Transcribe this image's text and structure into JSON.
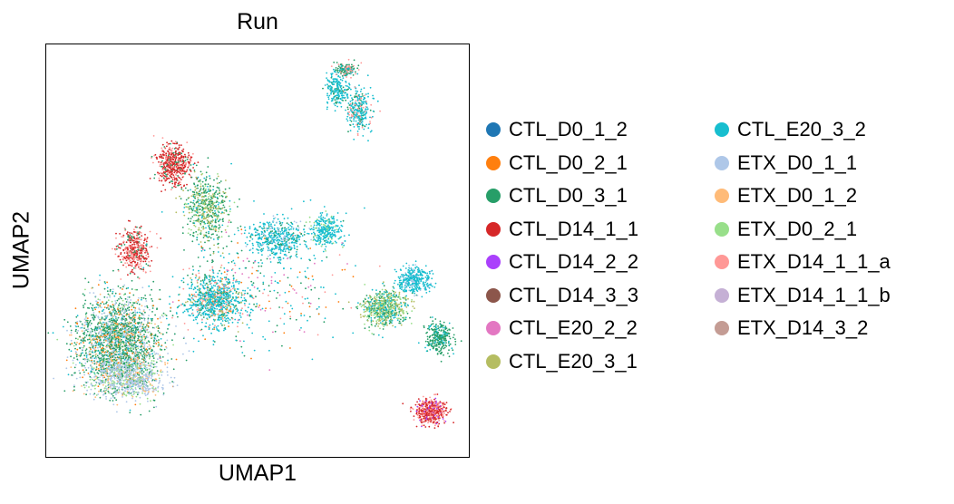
{
  "chart_data": {
    "type": "scatter",
    "title": "Run",
    "xlabel": "UMAP1",
    "ylabel": "UMAP2",
    "xticks": [],
    "yticks": [],
    "grid": false,
    "legend_placement": "right, outside plot, two columns",
    "series": [
      {
        "name": "CTL_D0_1_2",
        "color": "#1f77b4"
      },
      {
        "name": "CTL_D0_2_1",
        "color": "#ff7f0e"
      },
      {
        "name": "CTL_D0_3_1",
        "color": "#279e68"
      },
      {
        "name": "CTL_D14_1_1",
        "color": "#d62728"
      },
      {
        "name": "CTL_D14_2_2",
        "color": "#aa40fc"
      },
      {
        "name": "CTL_D14_3_3",
        "color": "#8c564b"
      },
      {
        "name": "CTL_E20_2_2",
        "color": "#e377c2"
      },
      {
        "name": "CTL_E20_3_1",
        "color": "#b5bd61"
      },
      {
        "name": "CTL_E20_3_2",
        "color": "#17becf"
      },
      {
        "name": "ETX_D0_1_1",
        "color": "#aec7e8"
      },
      {
        "name": "ETX_D0_1_2",
        "color": "#ffbb78"
      },
      {
        "name": "ETX_D0_2_1",
        "color": "#98df8a"
      },
      {
        "name": "ETX_D14_1_1_a",
        "color": "#ff9896"
      },
      {
        "name": "ETX_D14_1_1_b",
        "color": "#c5b0d5"
      },
      {
        "name": "ETX_D14_3_2",
        "color": "#c49c94"
      }
    ],
    "clusters": [
      {
        "x": 0.17,
        "y": 0.28,
        "spread": [
          0.1,
          0.11
        ],
        "weight": 32,
        "mix": {
          "CTL_D0_3_1": 6,
          "ETX_D0_1_1": 3,
          "ETX_D0_2_1": 1,
          "CTL_E20_3_2": 1,
          "ETX_D0_1_2": 1,
          "CTL_D0_2_1": 1
        }
      },
      {
        "x": 0.19,
        "y": 0.19,
        "spread": [
          0.09,
          0.05
        ],
        "weight": 10,
        "mix": {
          "ETX_D0_1_1": 6,
          "ETX_D0_2_1": 2,
          "CTL_D0_3_1": 1,
          "ETX_D0_1_2": 1
        }
      },
      {
        "x": 0.21,
        "y": 0.5,
        "spread": [
          0.035,
          0.05
        ],
        "weight": 6,
        "mix": {
          "CTL_D14_1_1": 4,
          "ETX_D14_1_1_a": 3,
          "CTL_D0_3_1": 1
        }
      },
      {
        "x": 0.3,
        "y": 0.71,
        "spread": [
          0.04,
          0.05
        ],
        "weight": 7,
        "mix": {
          "CTL_D14_1_1": 5,
          "ETX_D14_1_1_a": 2,
          "CTL_D0_3_1": 1
        }
      },
      {
        "x": 0.38,
        "y": 0.6,
        "spread": [
          0.05,
          0.08
        ],
        "weight": 8,
        "mix": {
          "CTL_D0_3_1": 4,
          "CTL_E20_3_1": 2,
          "CTL_E20_3_2": 1,
          "ETX_D0_2_1": 1
        }
      },
      {
        "x": 0.4,
        "y": 0.38,
        "spread": [
          0.07,
          0.06
        ],
        "weight": 12,
        "mix": {
          "CTL_E20_3_2": 5,
          "ETX_D14_1_1_a": 1,
          "CTL_D0_3_1": 1,
          "CTL_E20_3_1": 1
        }
      },
      {
        "x": 0.55,
        "y": 0.53,
        "spread": [
          0.07,
          0.05
        ],
        "weight": 7,
        "mix": {
          "CTL_E20_3_2": 5,
          "CTL_D0_3_1": 1,
          "ETX_D0_1_1": 1
        }
      },
      {
        "x": 0.66,
        "y": 0.55,
        "spread": [
          0.04,
          0.04
        ],
        "weight": 4,
        "mix": {
          "CTL_E20_3_2": 5,
          "ETX_D0_2_1": 1
        }
      },
      {
        "x": 0.74,
        "y": 0.84,
        "spread": [
          0.03,
          0.05
        ],
        "weight": 4,
        "mix": {
          "CTL_E20_3_2": 4,
          "CTL_D0_3_1": 1,
          "ETX_D14_1_1_a": 1
        }
      },
      {
        "x": 0.69,
        "y": 0.89,
        "spread": [
          0.025,
          0.04
        ],
        "weight": 3,
        "mix": {
          "CTL_E20_3_2": 5,
          "CTL_D0_3_1": 1
        }
      },
      {
        "x": 0.71,
        "y": 0.94,
        "spread": [
          0.025,
          0.015
        ],
        "weight": 2,
        "mix": {
          "CTL_D0_3_1": 3,
          "ETX_D14_1_1_a": 2,
          "CTL_E20_3_2": 1
        }
      },
      {
        "x": 0.8,
        "y": 0.36,
        "spread": [
          0.055,
          0.045
        ],
        "weight": 9,
        "mix": {
          "CTL_E20_3_1": 3,
          "ETX_D0_2_1": 2,
          "CTL_D0_3_1": 2,
          "CTL_E20_3_2": 2
        }
      },
      {
        "x": 0.87,
        "y": 0.43,
        "spread": [
          0.04,
          0.03
        ],
        "weight": 5,
        "mix": {
          "CTL_E20_3_2": 5,
          "ETX_D0_1_1": 1
        }
      },
      {
        "x": 0.93,
        "y": 0.29,
        "spread": [
          0.03,
          0.04
        ],
        "weight": 4,
        "mix": {
          "CTL_D0_3_1": 4,
          "CTL_E20_3_2": 1
        }
      },
      {
        "x": 0.91,
        "y": 0.11,
        "spread": [
          0.035,
          0.03
        ],
        "weight": 7,
        "mix": {
          "CTL_D14_1_1": 5,
          "ETX_D14_1_1_a": 3,
          "CTL_D14_2_2": 1
        }
      },
      {
        "x": 0.5,
        "y": 0.42,
        "spread": [
          0.2,
          0.15
        ],
        "weight": 5,
        "mix": {
          "CTL_E20_3_2": 3,
          "CTL_D0_3_1": 2,
          "ETX_D14_1_1_a": 1,
          "CTL_E20_2_2": 1,
          "CTL_D0_2_1": 1
        }
      }
    ]
  }
}
